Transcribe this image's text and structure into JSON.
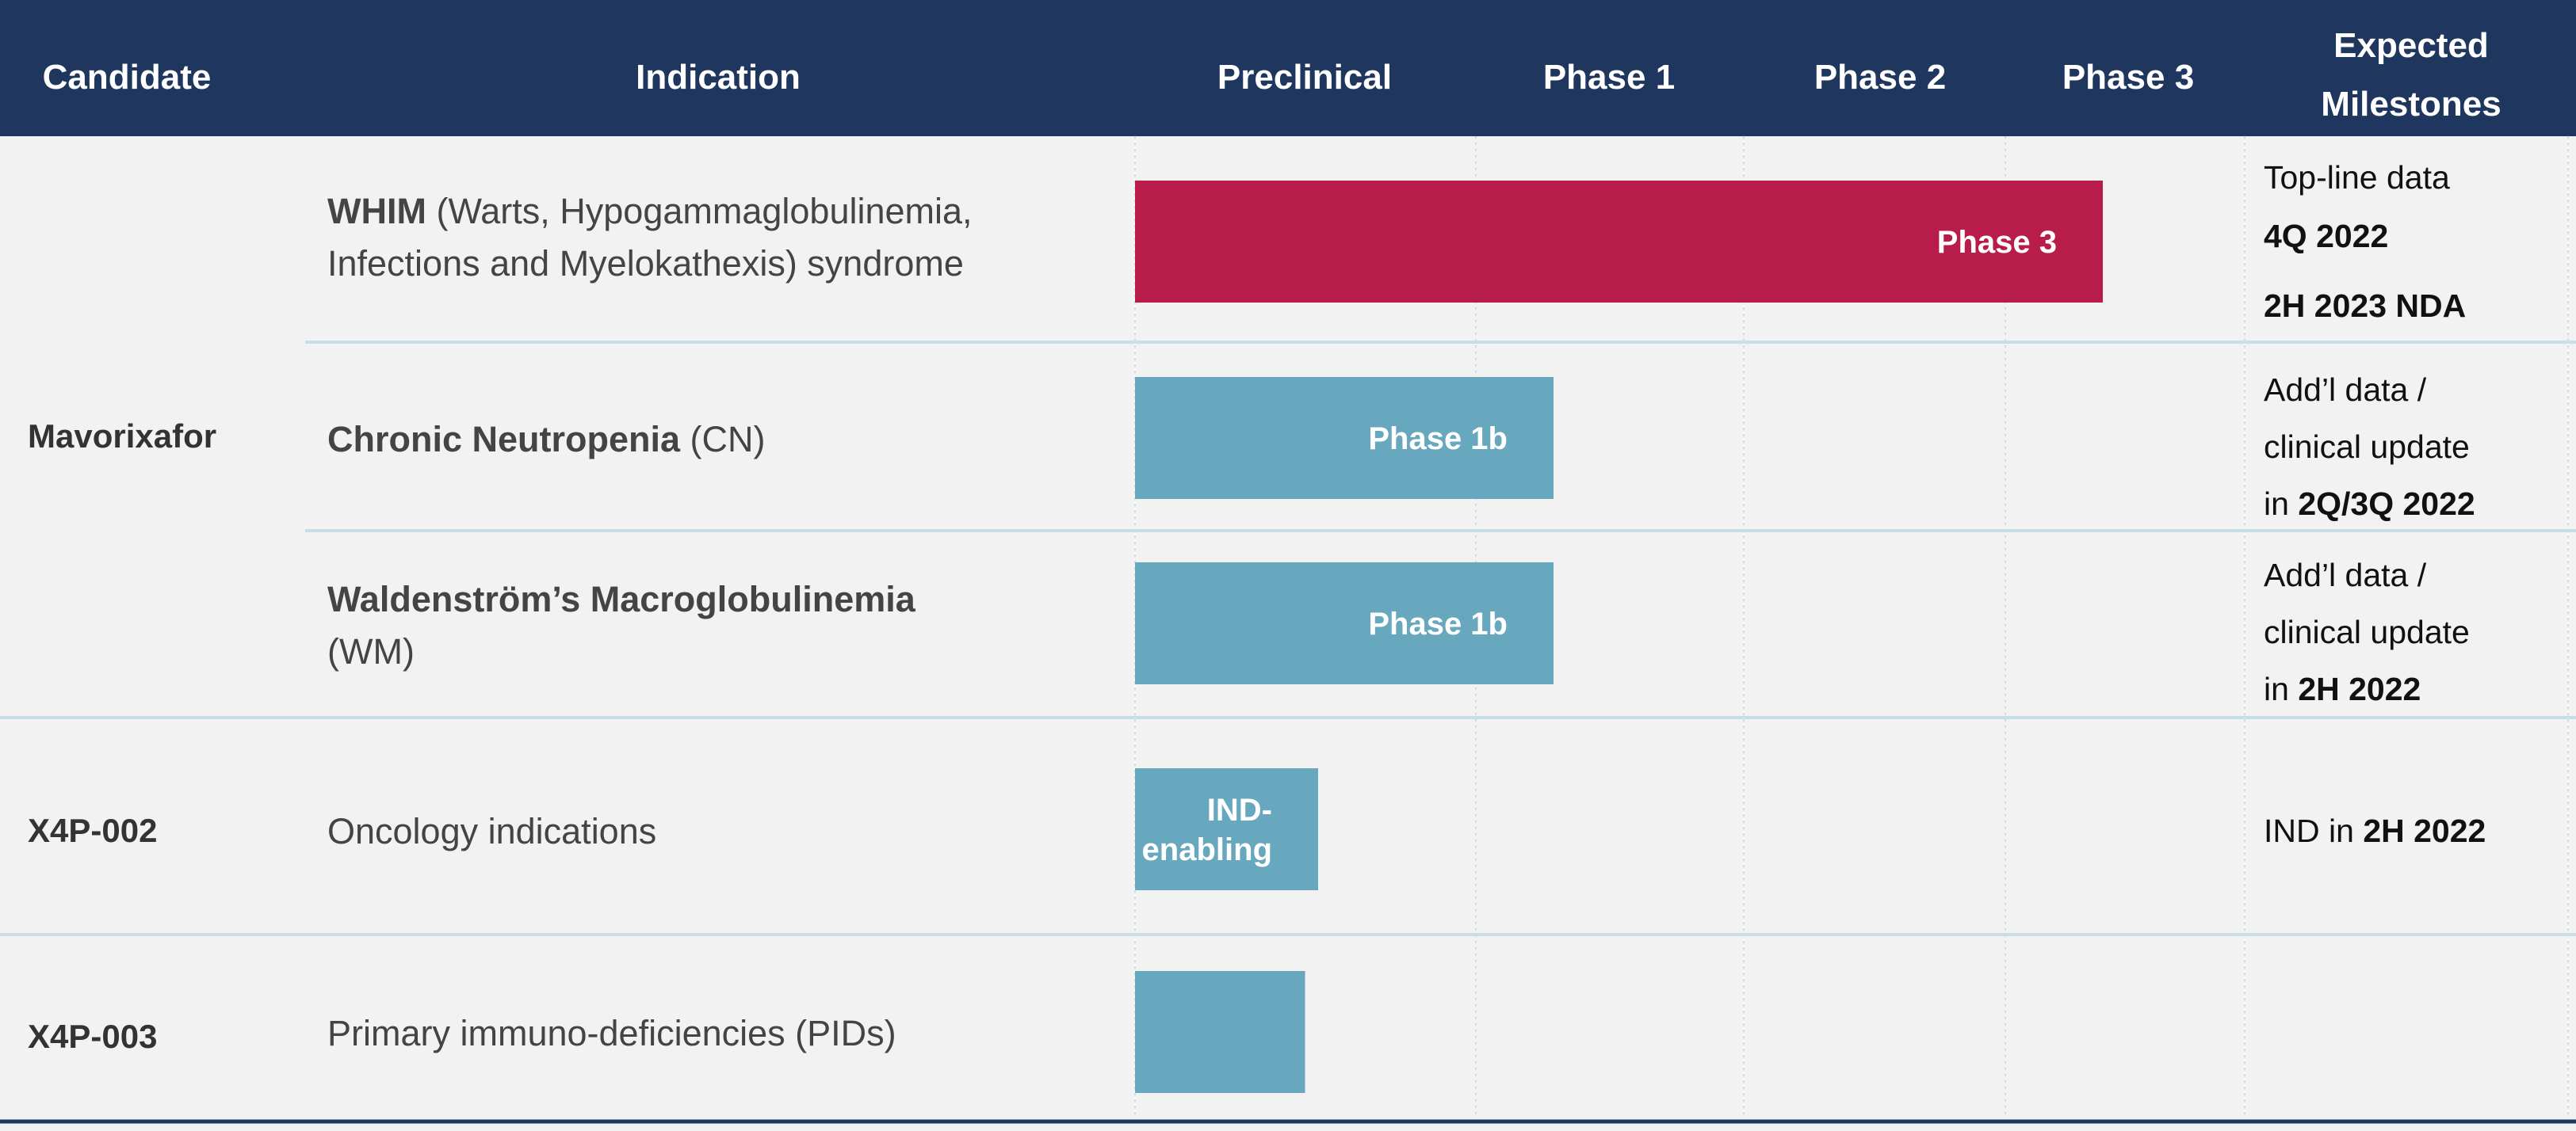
{
  "chart_data": {
    "type": "table",
    "columns": {
      "candidate": "Candidate",
      "indication": "Indication",
      "stages": [
        "Preclinical",
        "Phase 1",
        "Phase 2",
        "Phase 3"
      ],
      "milestones": [
        "Expected",
        "Milestones"
      ]
    },
    "colors": {
      "header": "#1f375e",
      "body": "#f2f2f2",
      "phase3_bar": "#b81c4b",
      "early_bar": "#67a8bf",
      "divider": "#c9dde7"
    },
    "candidates": [
      {
        "name": "Mavorixafor"
      },
      {
        "name": "X4P-002"
      },
      {
        "name": "X4P-003"
      }
    ],
    "rows": [
      {
        "indication_lines": [
          [
            {
              "text": "WHIM",
              "bold": true
            },
            {
              "text": " (Warts, Hypogammaglobulinemia,",
              "bold": false
            }
          ],
          [
            {
              "text": "Infections and Myelokathexis) syndrome",
              "bold": false
            }
          ]
        ],
        "progress_stage": 3.7,
        "bar_color": "phase3_bar",
        "bar_label_lines": [
          "Phase 3"
        ],
        "milestone_lines": [
          [
            {
              "text": "Top-line data",
              "bold": false
            }
          ],
          [
            {
              "text": "4Q 2022",
              "bold": true
            }
          ],
          [
            {
              "text": "2H 2023 NDA",
              "bold": true
            }
          ]
        ]
      },
      {
        "indication_lines": [
          [
            {
              "text": "Chronic Neutropenia",
              "bold": true
            },
            {
              "text": " (CN)",
              "bold": false
            }
          ]
        ],
        "progress_stage": 1.6,
        "bar_color": "early_bar",
        "bar_label_lines": [
          "Phase 1b"
        ],
        "milestone_lines": [
          [
            {
              "text": "Add’l data /",
              "bold": false
            }
          ],
          [
            {
              "text": "clinical update",
              "bold": false
            }
          ],
          [
            {
              "text": "in ",
              "bold": false
            },
            {
              "text": "2Q/3Q 2022",
              "bold": true
            }
          ]
        ]
      },
      {
        "indication_lines": [
          [
            {
              "text": "Waldenström’s Macroglobulinemia",
              "bold": true
            }
          ],
          [
            {
              "text": "(WM)",
              "bold": false
            }
          ]
        ],
        "progress_stage": 1.6,
        "bar_color": "early_bar",
        "bar_label_lines": [
          "Phase 1b"
        ],
        "milestone_lines": [
          [
            {
              "text": "Add’l data /",
              "bold": false
            }
          ],
          [
            {
              "text": "clinical update",
              "bold": false
            }
          ],
          [
            {
              "text": "in ",
              "bold": false
            },
            {
              "text": "2H 2022",
              "bold": true
            }
          ]
        ]
      },
      {
        "indication_lines": [
          [
            {
              "text": "Oncology indications",
              "bold": false
            }
          ]
        ],
        "progress_stage": 0.7,
        "bar_color": "early_bar",
        "bar_label_lines": [
          "IND-",
          "enabling"
        ],
        "milestone_lines": [
          [
            {
              "text": "IND in ",
              "bold": false
            },
            {
              "text": "2H 2022",
              "bold": true
            }
          ]
        ]
      },
      {
        "indication_lines": [
          [
            {
              "text": "Primary immuno-deficiencies (PIDs)",
              "bold": false
            }
          ]
        ],
        "progress_stage": 0.65,
        "bar_color": "early_bar",
        "bar_label_lines": [],
        "milestone_lines": []
      }
    ]
  }
}
